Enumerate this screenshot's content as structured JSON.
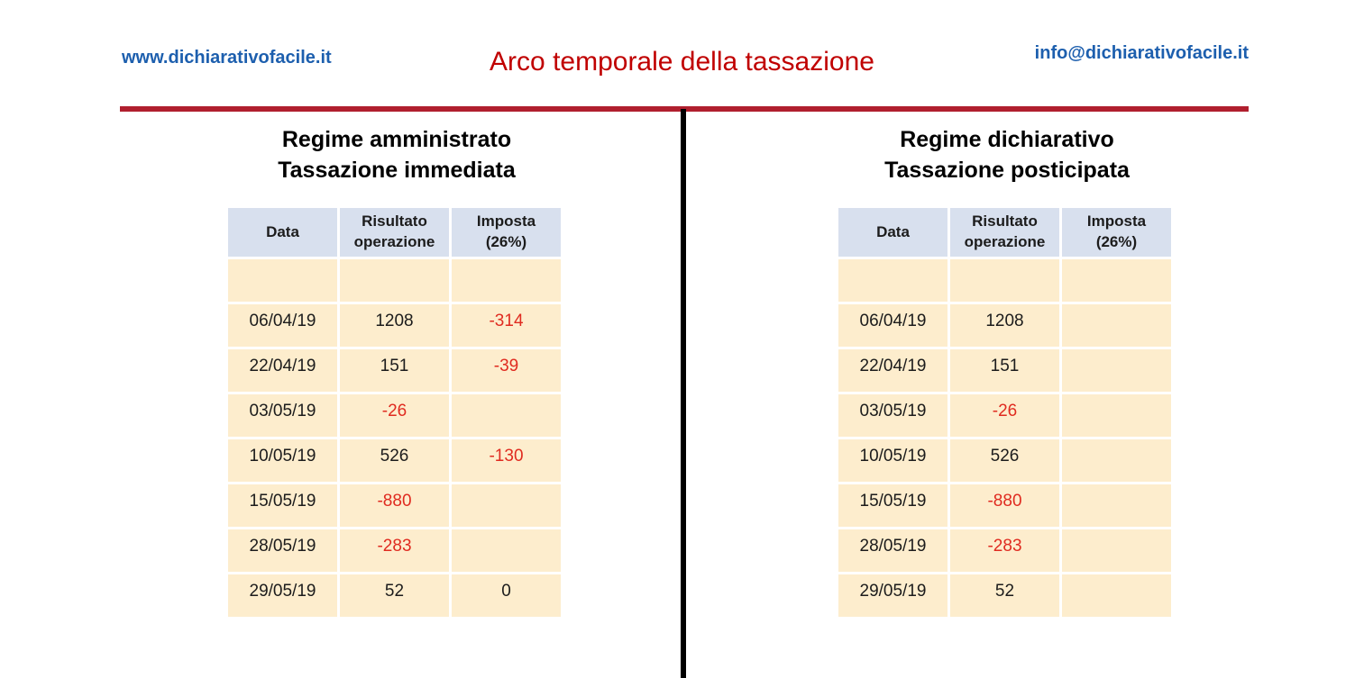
{
  "header": {
    "website": "www.dichiarativofacile.it",
    "title": "Arco temporale della tassazione",
    "email": "info@dichiarativofacile.it"
  },
  "colors": {
    "title_red": "#c00000",
    "divider_red": "#b01f2e",
    "divider_black": "#000000",
    "link_blue": "#1d5fae",
    "table_header_bg": "#d8e0ee",
    "table_body_bg": "#fdedcd",
    "negative_value_red": "#e02b20"
  },
  "panels": [
    {
      "id": "left",
      "title_line1": "Regime amministrato",
      "title_line2": "Tassazione immediata",
      "table": {
        "headers": [
          "Data",
          "Risultato\noperazione",
          "Imposta\n(26%)"
        ],
        "rows": [
          [
            "",
            "",
            ""
          ],
          [
            "06/04/19",
            "1208",
            "-314"
          ],
          [
            "22/04/19",
            "151",
            "-39"
          ],
          [
            "03/05/19",
            "-26",
            ""
          ],
          [
            "10/05/19",
            "526",
            "-130"
          ],
          [
            "15/05/19",
            "-880",
            ""
          ],
          [
            "28/05/19",
            "-283",
            ""
          ],
          [
            "29/05/19",
            "52",
            "0"
          ]
        ]
      }
    },
    {
      "id": "right",
      "title_line1": "Regime dichiarativo",
      "title_line2": "Tassazione posticipata",
      "table": {
        "headers": [
          "Data",
          "Risultato\noperazione",
          "Imposta\n(26%)"
        ],
        "rows": [
          [
            "",
            "",
            ""
          ],
          [
            "06/04/19",
            "1208",
            ""
          ],
          [
            "22/04/19",
            "151",
            ""
          ],
          [
            "03/05/19",
            "-26",
            ""
          ],
          [
            "10/05/19",
            "526",
            ""
          ],
          [
            "15/05/19",
            "-880",
            ""
          ],
          [
            "28/05/19",
            "-283",
            ""
          ],
          [
            "29/05/19",
            "52",
            ""
          ]
        ]
      }
    }
  ]
}
